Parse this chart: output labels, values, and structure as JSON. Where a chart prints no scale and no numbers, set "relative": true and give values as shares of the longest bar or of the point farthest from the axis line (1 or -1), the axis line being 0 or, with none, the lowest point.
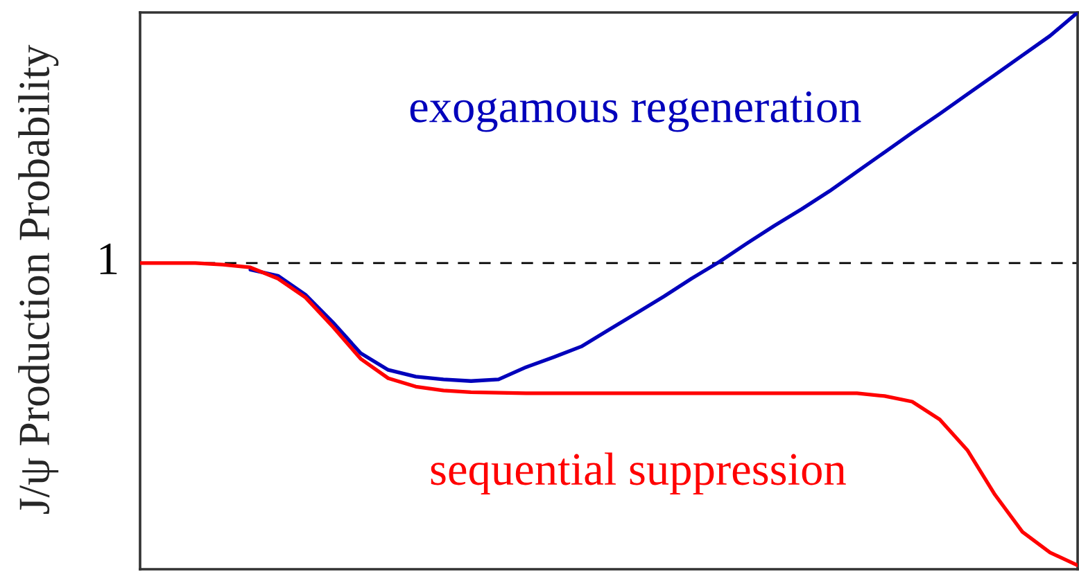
{
  "chart_data": {
    "type": "line",
    "ylabel": "J/ψ Production Probability",
    "relative": true,
    "marker": "none",
    "line_style": "solid",
    "categories": [
      null,
      null,
      null,
      null,
      null,
      null,
      null,
      null,
      null,
      null,
      null,
      null,
      null,
      null,
      null,
      null,
      null,
      null,
      null,
      null,
      null,
      null,
      null,
      null,
      null,
      null,
      null,
      null,
      null,
      null,
      null,
      null,
      null,
      null,
      null
    ],
    "series": [
      {
        "name": "exogamous regeneration",
        "color": "#0000bb",
        "values": [
          null,
          null,
          null,
          null,
          0.538,
          0.527,
          0.493,
          0.443,
          0.388,
          0.358,
          0.346,
          0.341,
          0.338,
          0.341,
          0.363,
          0.381,
          0.4,
          0.43,
          0.46,
          0.49,
          0.522,
          0.552,
          0.585,
          0.617,
          0.647,
          0.679,
          0.714,
          0.749,
          0.784,
          0.818,
          0.853,
          0.888,
          0.923,
          0.958,
          1.0
        ]
      },
      {
        "name": "sequential suppression",
        "color": "#ff0000",
        "values": [
          0.55,
          0.55,
          0.55,
          0.547,
          0.542,
          0.522,
          0.488,
          0.435,
          0.378,
          0.343,
          0.328,
          0.321,
          0.318,
          0.317,
          0.316,
          0.316,
          0.316,
          0.316,
          0.316,
          0.316,
          0.316,
          0.316,
          0.316,
          0.316,
          0.316,
          0.316,
          0.316,
          0.311,
          0.301,
          0.269,
          0.214,
          0.134,
          0.067,
          0.03,
          0.007
        ]
      }
    ],
    "ref_lines": [
      {
        "axis": "y",
        "value": 0.55,
        "label": "1",
        "color": "#000000",
        "line_style": "dashed"
      }
    ]
  }
}
